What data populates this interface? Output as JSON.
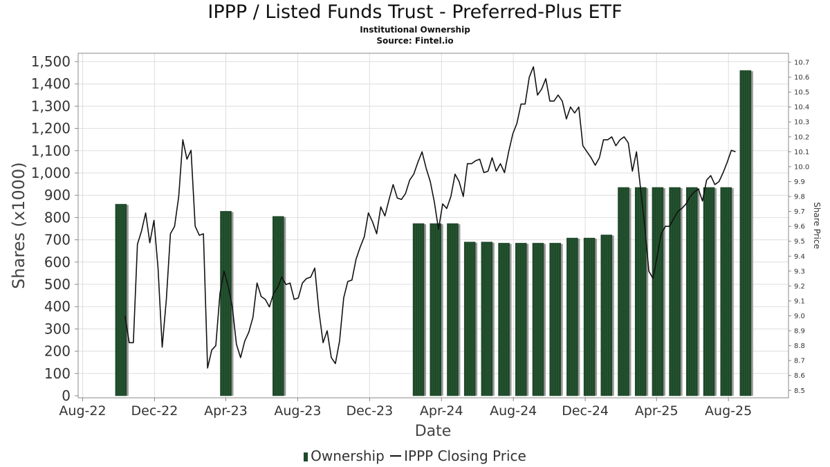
{
  "header": {
    "title": "IPPP / Listed Funds Trust - Preferred-Plus ETF",
    "subtitle": "Institutional Ownership",
    "source": "Source: Fintel.io"
  },
  "legend": {
    "ownership_label": "Ownership",
    "price_label": "IPPP Closing Price"
  },
  "colors": {
    "bar": "#1f4a2a",
    "bar_shadow": "#999999",
    "line": "#111111",
    "grid": "#dddddd"
  },
  "chart_data": {
    "type": "bar",
    "title": "IPPP / Listed Funds Trust - Preferred-Plus ETF",
    "subtitle": "Institutional Ownership",
    "xlabel": "Date",
    "ylabel": "Shares (x1000)",
    "y2label": "Share Price",
    "ylim": [
      0,
      1500
    ],
    "y2lim": [
      8.5,
      10.7
    ],
    "x_range": [
      "2022-08-01",
      "2025-11-01"
    ],
    "x_ticks": [
      {
        "date": "2022-08-01",
        "label": "Aug-22"
      },
      {
        "date": "2022-12-01",
        "label": "Dec-22"
      },
      {
        "date": "2023-04-01",
        "label": "Apr-23"
      },
      {
        "date": "2023-08-01",
        "label": "Aug-23"
      },
      {
        "date": "2023-12-01",
        "label": "Dec-23"
      },
      {
        "date": "2024-04-01",
        "label": "Apr-24"
      },
      {
        "date": "2024-08-01",
        "label": "Aug-24"
      },
      {
        "date": "2024-12-01",
        "label": "Dec-24"
      },
      {
        "date": "2025-04-01",
        "label": "Apr-25"
      },
      {
        "date": "2025-08-01",
        "label": "Aug-25"
      }
    ],
    "y_ticks": [
      0,
      100,
      200,
      300,
      400,
      500,
      600,
      700,
      800,
      900,
      1000,
      1100,
      1200,
      1300,
      1400,
      1500
    ],
    "y_tick_labels": [
      "0",
      "100",
      "200",
      "300",
      "400",
      "500",
      "600",
      "700",
      "800",
      "900",
      "1,000",
      "1,100",
      "1,200",
      "1,300",
      "1,400",
      "1,500"
    ],
    "y2_ticks": [
      8.5,
      8.6,
      8.7,
      8.8,
      8.9,
      9.0,
      9.1,
      9.2,
      9.3,
      9.4,
      9.5,
      9.6,
      9.7,
      9.8,
      9.9,
      10.0,
      10.1,
      10.2,
      10.3,
      10.4,
      10.5,
      10.6,
      10.7
    ],
    "y2_tick_labels": [
      "8.5",
      "8.6",
      "8.7",
      "8.8",
      "8.9",
      "9.0",
      "9.1",
      "9.2",
      "9.3",
      "9.4",
      "9.5",
      "9.6",
      "9.7",
      "9.8",
      "9.9",
      "10.0",
      "10.1",
      "10.2",
      "10.3",
      "10.4",
      "10.5",
      "10.6",
      "10.7"
    ],
    "grid": true,
    "legend_position": "bottom",
    "ownership": [
      {
        "date": "2022-10-05",
        "value": 860
      },
      {
        "date": "2023-04-01",
        "value": 828
      },
      {
        "date": "2023-06-29",
        "value": 805
      },
      {
        "date": "2024-02-22",
        "value": 773
      },
      {
        "date": "2024-03-22",
        "value": 773
      },
      {
        "date": "2024-04-20",
        "value": 773
      },
      {
        "date": "2024-05-19",
        "value": 690
      },
      {
        "date": "2024-06-17",
        "value": 690
      },
      {
        "date": "2024-07-16",
        "value": 685
      },
      {
        "date": "2024-08-14",
        "value": 685
      },
      {
        "date": "2024-09-12",
        "value": 685
      },
      {
        "date": "2024-10-11",
        "value": 685
      },
      {
        "date": "2024-11-09",
        "value": 708
      },
      {
        "date": "2024-12-08",
        "value": 708
      },
      {
        "date": "2025-01-06",
        "value": 722
      },
      {
        "date": "2025-02-04",
        "value": 935
      },
      {
        "date": "2025-03-05",
        "value": 935
      },
      {
        "date": "2025-04-03",
        "value": 935
      },
      {
        "date": "2025-05-02",
        "value": 935
      },
      {
        "date": "2025-05-31",
        "value": 935
      },
      {
        "date": "2025-06-29",
        "value": 935
      },
      {
        "date": "2025-07-28",
        "value": 935
      },
      {
        "date": "2025-08-30",
        "value": 1460
      }
    ],
    "price_series": [
      {
        "date": "2022-10-12",
        "value": 9.0
      },
      {
        "date": "2022-10-19",
        "value": 8.82
      },
      {
        "date": "2022-10-26",
        "value": 8.82
      },
      {
        "date": "2022-11-02",
        "value": 9.48
      },
      {
        "date": "2022-11-09",
        "value": 9.57
      },
      {
        "date": "2022-11-16",
        "value": 9.69
      },
      {
        "date": "2022-11-23",
        "value": 9.49
      },
      {
        "date": "2022-11-30",
        "value": 9.64
      },
      {
        "date": "2022-12-07",
        "value": 9.32
      },
      {
        "date": "2022-12-14",
        "value": 8.79
      },
      {
        "date": "2022-12-21",
        "value": 9.11
      },
      {
        "date": "2022-12-28",
        "value": 9.55
      },
      {
        "date": "2023-01-04",
        "value": 9.6
      },
      {
        "date": "2023-01-11",
        "value": 9.8
      },
      {
        "date": "2023-01-18",
        "value": 10.18
      },
      {
        "date": "2023-01-25",
        "value": 10.05
      },
      {
        "date": "2023-02-01",
        "value": 10.11
      },
      {
        "date": "2023-02-08",
        "value": 9.6
      },
      {
        "date": "2023-02-15",
        "value": 9.54
      },
      {
        "date": "2023-02-22",
        "value": 9.55
      },
      {
        "date": "2023-03-01",
        "value": 8.65
      },
      {
        "date": "2023-03-08",
        "value": 8.77
      },
      {
        "date": "2023-03-15",
        "value": 8.8
      },
      {
        "date": "2023-03-22",
        "value": 9.15
      },
      {
        "date": "2023-03-29",
        "value": 9.3
      },
      {
        "date": "2023-04-05",
        "value": 9.2
      },
      {
        "date": "2023-04-12",
        "value": 9.06
      },
      {
        "date": "2023-04-19",
        "value": 8.81
      },
      {
        "date": "2023-04-26",
        "value": 8.72
      },
      {
        "date": "2023-05-03",
        "value": 8.83
      },
      {
        "date": "2023-05-10",
        "value": 8.89
      },
      {
        "date": "2023-05-17",
        "value": 8.99
      },
      {
        "date": "2023-05-24",
        "value": 9.22
      },
      {
        "date": "2023-05-31",
        "value": 9.13
      },
      {
        "date": "2023-06-07",
        "value": 9.11
      },
      {
        "date": "2023-06-14",
        "value": 9.06
      },
      {
        "date": "2023-06-21",
        "value": 9.15
      },
      {
        "date": "2023-06-28",
        "value": 9.19
      },
      {
        "date": "2023-07-05",
        "value": 9.26
      },
      {
        "date": "2023-07-12",
        "value": 9.21
      },
      {
        "date": "2023-07-19",
        "value": 9.22
      },
      {
        "date": "2023-07-26",
        "value": 9.11
      },
      {
        "date": "2023-08-02",
        "value": 9.12
      },
      {
        "date": "2023-08-09",
        "value": 9.22
      },
      {
        "date": "2023-08-16",
        "value": 9.25
      },
      {
        "date": "2023-08-23",
        "value": 9.26
      },
      {
        "date": "2023-08-30",
        "value": 9.32
      },
      {
        "date": "2023-09-06",
        "value": 9.03
      },
      {
        "date": "2023-09-13",
        "value": 8.82
      },
      {
        "date": "2023-09-20",
        "value": 8.9
      },
      {
        "date": "2023-09-27",
        "value": 8.72
      },
      {
        "date": "2023-10-04",
        "value": 8.68
      },
      {
        "date": "2023-10-11",
        "value": 8.83
      },
      {
        "date": "2023-10-18",
        "value": 9.12
      },
      {
        "date": "2023-10-25",
        "value": 9.23
      },
      {
        "date": "2023-11-01",
        "value": 9.24
      },
      {
        "date": "2023-11-08",
        "value": 9.38
      },
      {
        "date": "2023-11-15",
        "value": 9.46
      },
      {
        "date": "2023-11-22",
        "value": 9.53
      },
      {
        "date": "2023-11-29",
        "value": 9.69
      },
      {
        "date": "2023-12-06",
        "value": 9.63
      },
      {
        "date": "2023-12-13",
        "value": 9.55
      },
      {
        "date": "2023-12-20",
        "value": 9.73
      },
      {
        "date": "2023-12-27",
        "value": 9.67
      },
      {
        "date": "2024-01-03",
        "value": 9.78
      },
      {
        "date": "2024-01-10",
        "value": 9.88
      },
      {
        "date": "2024-01-17",
        "value": 9.79
      },
      {
        "date": "2024-01-24",
        "value": 9.78
      },
      {
        "date": "2024-01-31",
        "value": 9.82
      },
      {
        "date": "2024-02-07",
        "value": 9.91
      },
      {
        "date": "2024-02-14",
        "value": 9.95
      },
      {
        "date": "2024-02-21",
        "value": 10.03
      },
      {
        "date": "2024-02-28",
        "value": 10.1
      },
      {
        "date": "2024-03-06",
        "value": 9.99
      },
      {
        "date": "2024-03-13",
        "value": 9.9
      },
      {
        "date": "2024-03-20",
        "value": 9.76
      },
      {
        "date": "2024-03-27",
        "value": 9.58
      },
      {
        "date": "2024-04-03",
        "value": 9.75
      },
      {
        "date": "2024-04-10",
        "value": 9.72
      },
      {
        "date": "2024-04-17",
        "value": 9.8
      },
      {
        "date": "2024-04-24",
        "value": 9.95
      },
      {
        "date": "2024-05-01",
        "value": 9.9
      },
      {
        "date": "2024-05-08",
        "value": 9.8
      },
      {
        "date": "2024-05-15",
        "value": 10.02
      },
      {
        "date": "2024-05-22",
        "value": 10.02
      },
      {
        "date": "2024-05-29",
        "value": 10.04
      },
      {
        "date": "2024-06-05",
        "value": 10.05
      },
      {
        "date": "2024-06-12",
        "value": 9.96
      },
      {
        "date": "2024-06-19",
        "value": 9.97
      },
      {
        "date": "2024-06-26",
        "value": 10.06
      },
      {
        "date": "2024-07-03",
        "value": 9.97
      },
      {
        "date": "2024-07-10",
        "value": 10.02
      },
      {
        "date": "2024-07-17",
        "value": 9.96
      },
      {
        "date": "2024-07-24",
        "value": 10.1
      },
      {
        "date": "2024-07-31",
        "value": 10.22
      },
      {
        "date": "2024-08-07",
        "value": 10.29
      },
      {
        "date": "2024-08-14",
        "value": 10.42
      },
      {
        "date": "2024-08-21",
        "value": 10.42
      },
      {
        "date": "2024-08-28",
        "value": 10.6
      },
      {
        "date": "2024-09-04",
        "value": 10.67
      },
      {
        "date": "2024-09-11",
        "value": 10.48
      },
      {
        "date": "2024-09-18",
        "value": 10.52
      },
      {
        "date": "2024-09-25",
        "value": 10.59
      },
      {
        "date": "2024-10-02",
        "value": 10.44
      },
      {
        "date": "2024-10-09",
        "value": 10.44
      },
      {
        "date": "2024-10-16",
        "value": 10.48
      },
      {
        "date": "2024-10-23",
        "value": 10.44
      },
      {
        "date": "2024-10-30",
        "value": 10.32
      },
      {
        "date": "2024-11-06",
        "value": 10.4
      },
      {
        "date": "2024-11-13",
        "value": 10.36
      },
      {
        "date": "2024-11-20",
        "value": 10.4
      },
      {
        "date": "2024-11-27",
        "value": 10.14
      },
      {
        "date": "2024-12-04",
        "value": 10.1
      },
      {
        "date": "2024-12-11",
        "value": 10.06
      },
      {
        "date": "2024-12-18",
        "value": 10.01
      },
      {
        "date": "2024-12-25",
        "value": 10.06
      },
      {
        "date": "2025-01-01",
        "value": 10.18
      },
      {
        "date": "2025-01-08",
        "value": 10.18
      },
      {
        "date": "2025-01-15",
        "value": 10.2
      },
      {
        "date": "2025-01-22",
        "value": 10.14
      },
      {
        "date": "2025-01-29",
        "value": 10.18
      },
      {
        "date": "2025-02-05",
        "value": 10.2
      },
      {
        "date": "2025-02-12",
        "value": 10.16
      },
      {
        "date": "2025-02-19",
        "value": 9.97
      },
      {
        "date": "2025-02-26",
        "value": 10.1
      },
      {
        "date": "2025-03-05",
        "value": 9.85
      },
      {
        "date": "2025-03-12",
        "value": 9.6
      },
      {
        "date": "2025-03-19",
        "value": 9.3
      },
      {
        "date": "2025-03-26",
        "value": 9.25
      },
      {
        "date": "2025-04-02",
        "value": 9.4
      },
      {
        "date": "2025-04-09",
        "value": 9.55
      },
      {
        "date": "2025-04-16",
        "value": 9.6
      },
      {
        "date": "2025-04-23",
        "value": 9.6
      },
      {
        "date": "2025-04-30",
        "value": 9.65
      },
      {
        "date": "2025-05-07",
        "value": 9.7
      },
      {
        "date": "2025-05-14",
        "value": 9.72
      },
      {
        "date": "2025-05-21",
        "value": 9.75
      },
      {
        "date": "2025-05-28",
        "value": 9.8
      },
      {
        "date": "2025-06-04",
        "value": 9.83
      },
      {
        "date": "2025-06-11",
        "value": 9.85
      },
      {
        "date": "2025-06-18",
        "value": 9.77
      },
      {
        "date": "2025-06-25",
        "value": 9.91
      },
      {
        "date": "2025-07-02",
        "value": 9.94
      },
      {
        "date": "2025-07-09",
        "value": 9.88
      },
      {
        "date": "2025-07-16",
        "value": 9.9
      },
      {
        "date": "2025-07-23",
        "value": 9.96
      },
      {
        "date": "2025-07-30",
        "value": 10.03
      },
      {
        "date": "2025-08-06",
        "value": 10.11
      },
      {
        "date": "2025-08-13",
        "value": 10.1
      }
    ]
  }
}
